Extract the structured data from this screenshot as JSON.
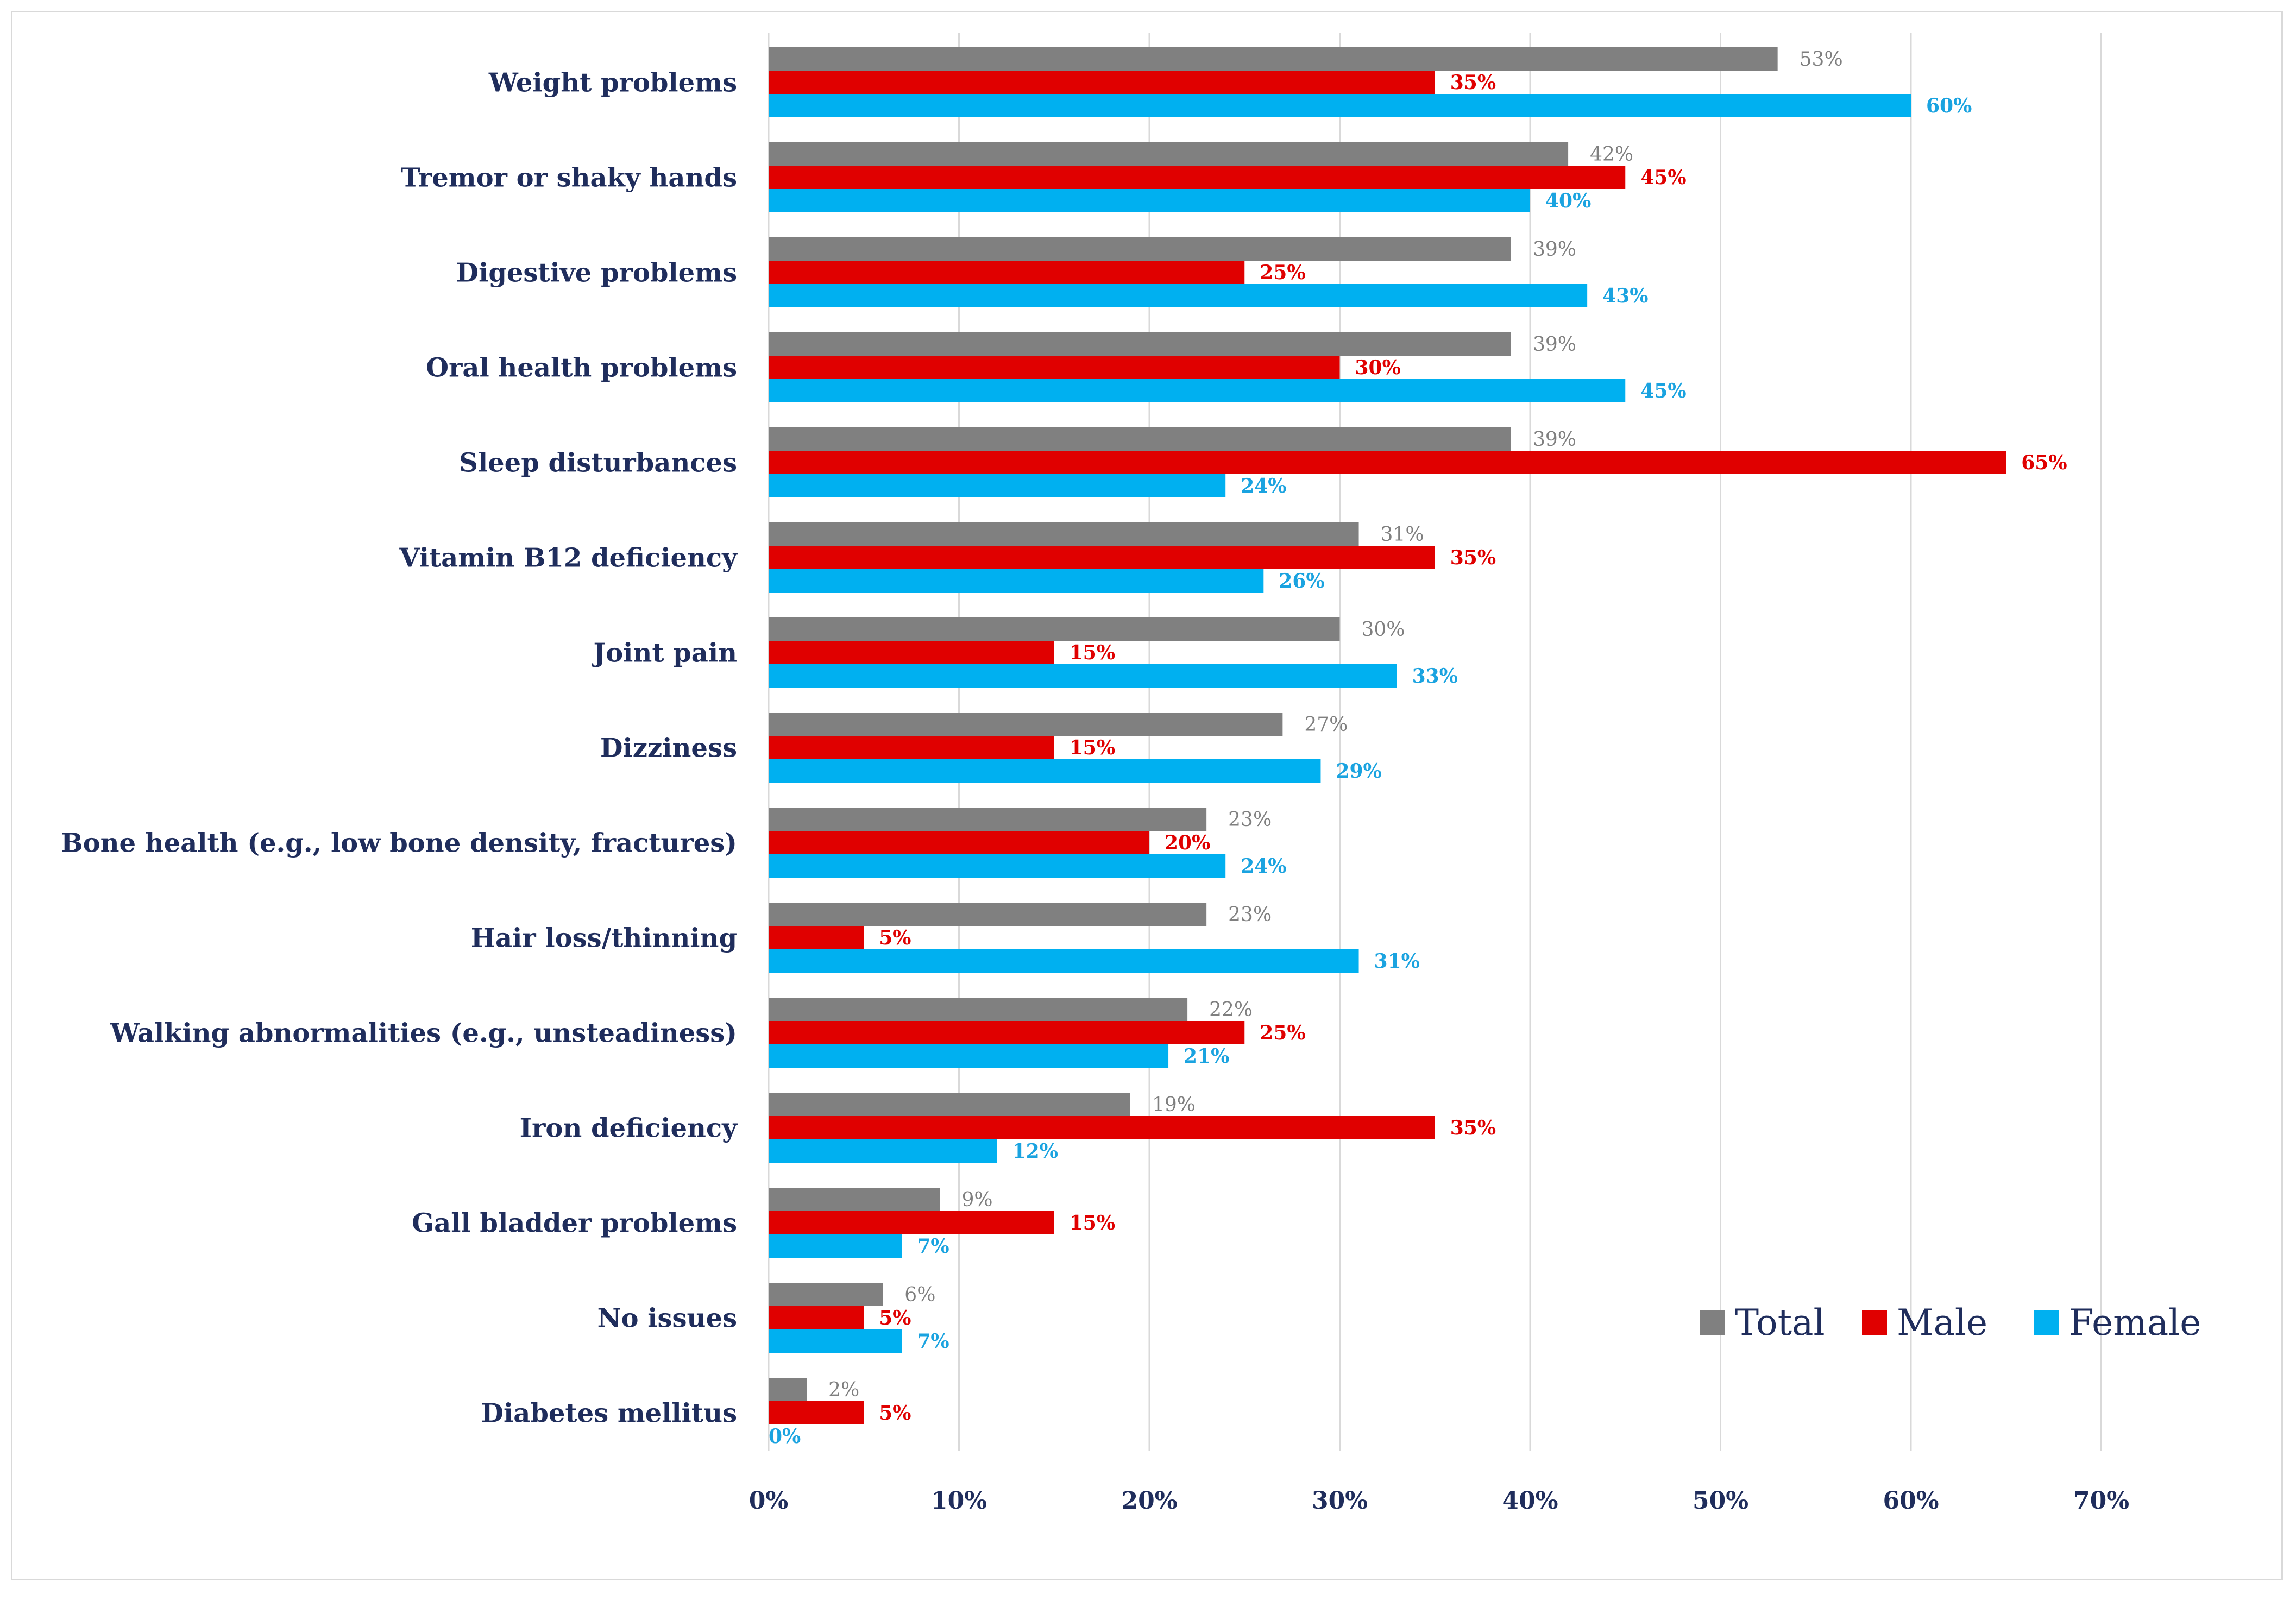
{
  "chart_data": {
    "type": "bar",
    "orientation": "horizontal",
    "title": "",
    "xlabel": "",
    "ylabel": "",
    "xlim": [
      0,
      70
    ],
    "xticks": [
      0,
      10,
      20,
      30,
      40,
      50,
      60,
      70
    ],
    "xtick_labels": [
      "0%",
      "10%",
      "20%",
      "30%",
      "40%",
      "50%",
      "60%",
      "70%"
    ],
    "grid": true,
    "legend_position": "bottom-right",
    "categories": [
      "Weight problems",
      "Tremor or shaky hands",
      "Digestive  problems",
      "Oral health problems",
      "Sleep disturbances",
      "Vitamin B12 deficiency",
      "Joint pain",
      "Dizziness",
      "Bone health (e.g., low bone density, fractures)",
      "Hair loss/thinning",
      "Walking abnormalities (e.g., unsteadiness)",
      "Iron deficiency",
      "Gall bladder problems",
      "No issues",
      "Diabetes mellitus"
    ],
    "series": [
      {
        "name": "Total",
        "color": "#808080",
        "values": [
          53,
          42,
          39,
          39,
          39,
          31,
          30,
          27,
          23,
          23,
          22,
          19,
          9,
          6,
          2
        ],
        "labels": [
          "53%",
          "42%",
          "39%",
          "39%",
          "39%",
          "31%",
          "30%",
          "27%",
          "23%",
          "23%",
          "22%",
          "19%",
          "9%",
          "6%",
          "2%"
        ]
      },
      {
        "name": "Male",
        "color": "#e00000",
        "values": [
          35,
          45,
          25,
          30,
          65,
          35,
          15,
          15,
          20,
          5,
          25,
          35,
          15,
          5,
          5
        ],
        "labels": [
          "35%",
          "45%",
          "25%",
          "30%",
          "65%",
          "35%",
          "15%",
          "15%",
          "20%",
          "5%",
          "25%",
          "35%",
          "15%",
          "5%",
          "5%"
        ]
      },
      {
        "name": "Female",
        "color": "#00b0f0",
        "values": [
          60,
          40,
          43,
          45,
          24,
          26,
          33,
          29,
          24,
          31,
          21,
          12,
          7,
          7,
          0
        ],
        "labels": [
          "60%",
          "40%",
          "43%",
          "45%",
          "24%",
          "26%",
          "33%",
          "29%",
          "24%",
          "31%",
          "21%",
          "12%",
          "7%",
          "7%",
          "0%"
        ]
      }
    ]
  }
}
